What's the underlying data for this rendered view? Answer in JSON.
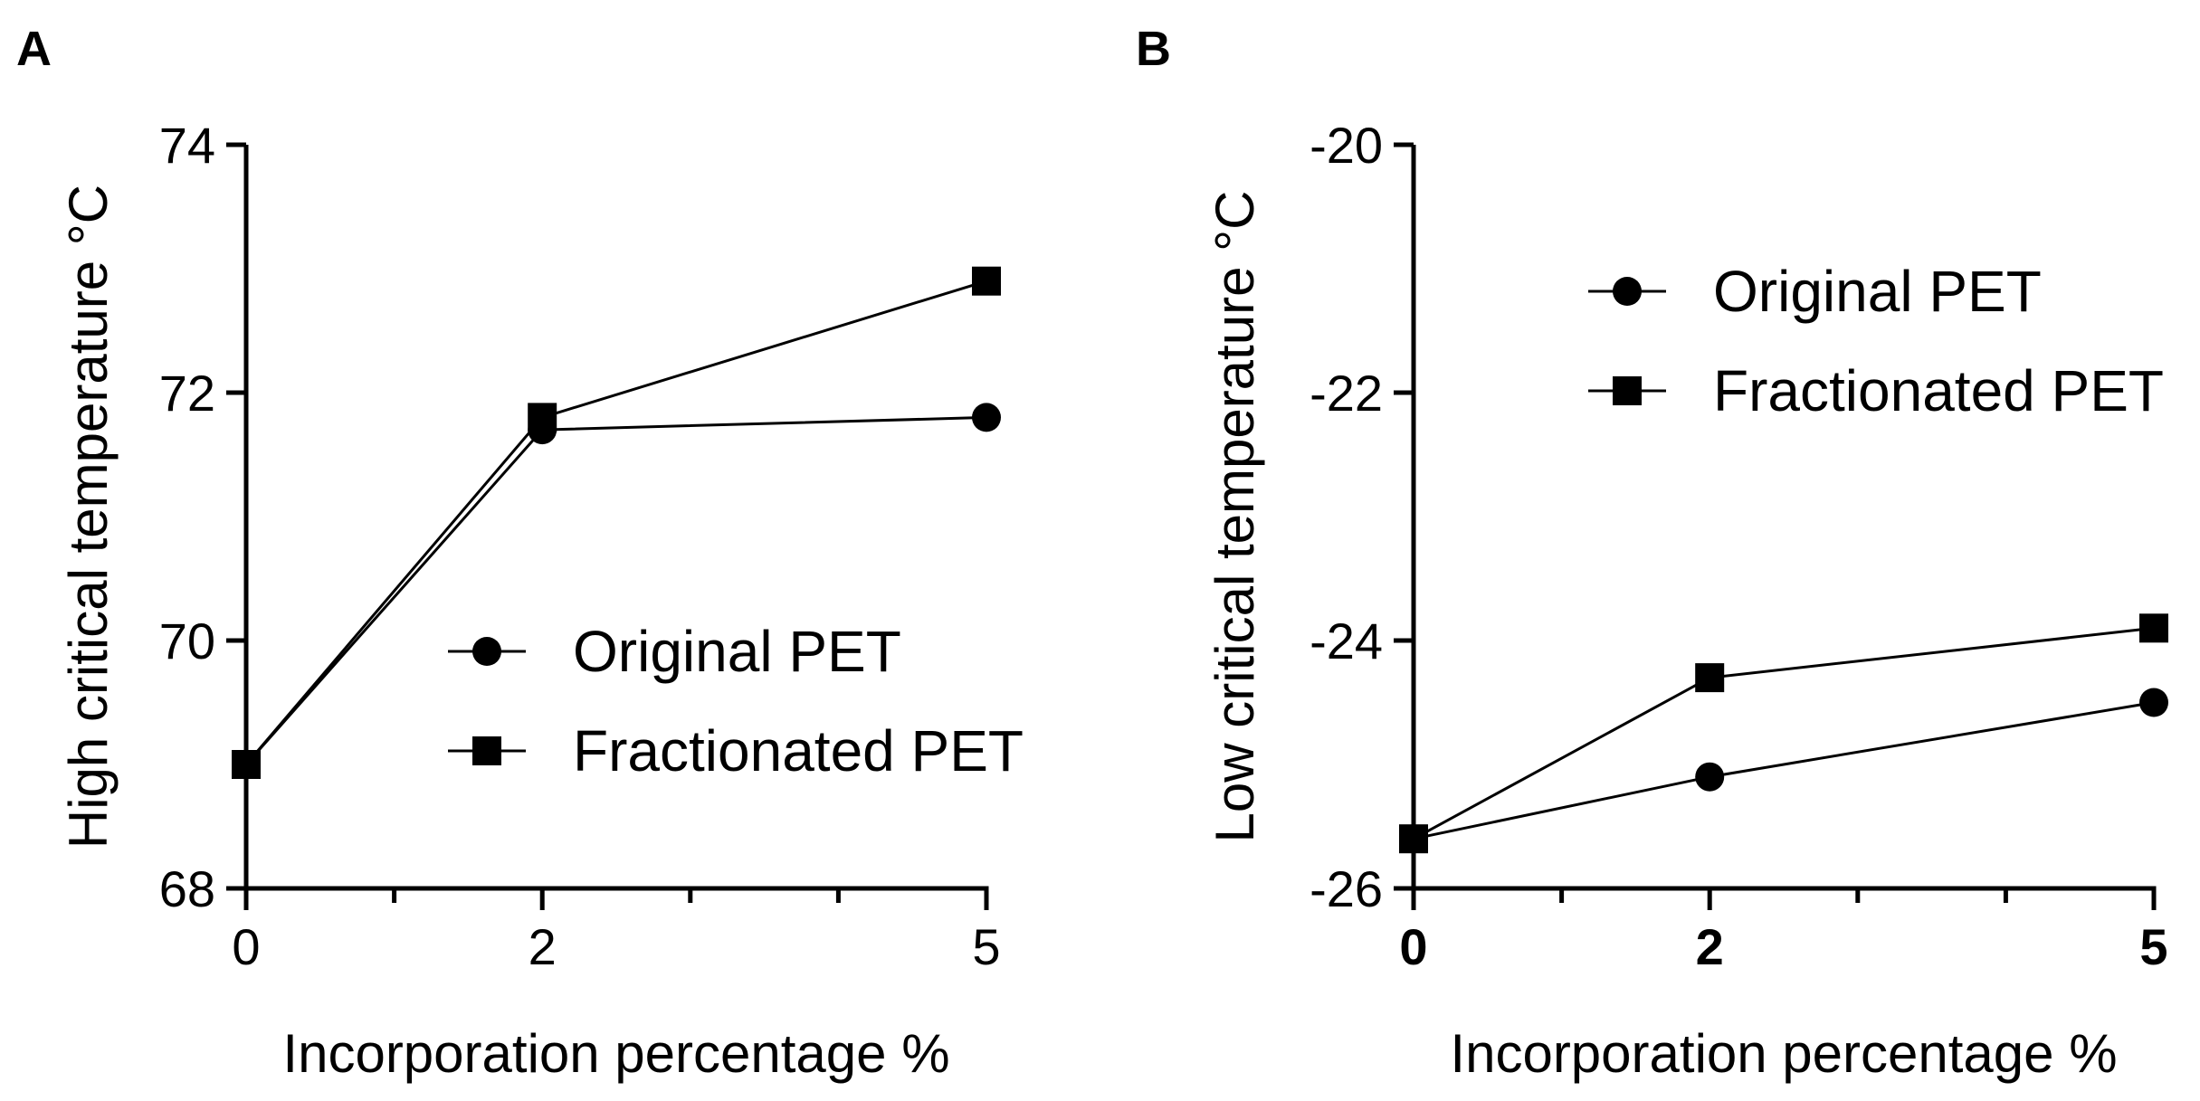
{
  "chart_data": [
    {
      "type": "line",
      "panel_label": "A",
      "xlabel": "Incorporation percentage %",
      "ylabel": "High critical temperature °C",
      "x": [
        0,
        2,
        5
      ],
      "x_tick_labels": [
        "0",
        "2",
        "5"
      ],
      "xlim": [
        0,
        5
      ],
      "ylim": [
        68,
        74
      ],
      "y_ticks": [
        68,
        70,
        72,
        74
      ],
      "y_tick_labels": [
        "68",
        "70",
        "72",
        "74"
      ],
      "x_tick_bold": false,
      "legend_position": "center-right",
      "series": [
        {
          "name": "Original PET",
          "marker": "circle",
          "values": [
            69.0,
            71.7,
            71.8
          ]
        },
        {
          "name": "Fractionated PET",
          "marker": "square",
          "values": [
            69.0,
            71.8,
            72.9
          ]
        }
      ]
    },
    {
      "type": "line",
      "panel_label": "B",
      "xlabel": "Incorporation percentage %",
      "ylabel": "Low critical temperature °C",
      "x": [
        0,
        2,
        5
      ],
      "x_tick_labels": [
        "0",
        "2",
        "5"
      ],
      "xlim": [
        0,
        5
      ],
      "ylim": [
        -26,
        -20
      ],
      "y_ticks": [
        -26,
        -24,
        -22,
        -20
      ],
      "y_tick_labels": [
        "-26",
        "-24",
        "-22",
        "-20"
      ],
      "x_tick_bold": true,
      "legend_position": "top-right",
      "series": [
        {
          "name": "Original PET",
          "marker": "circle",
          "values": [
            -25.6,
            -25.1,
            -24.5
          ]
        },
        {
          "name": "Fractionated PET",
          "marker": "square",
          "values": [
            -25.6,
            -24.3,
            -23.9
          ]
        }
      ]
    }
  ]
}
